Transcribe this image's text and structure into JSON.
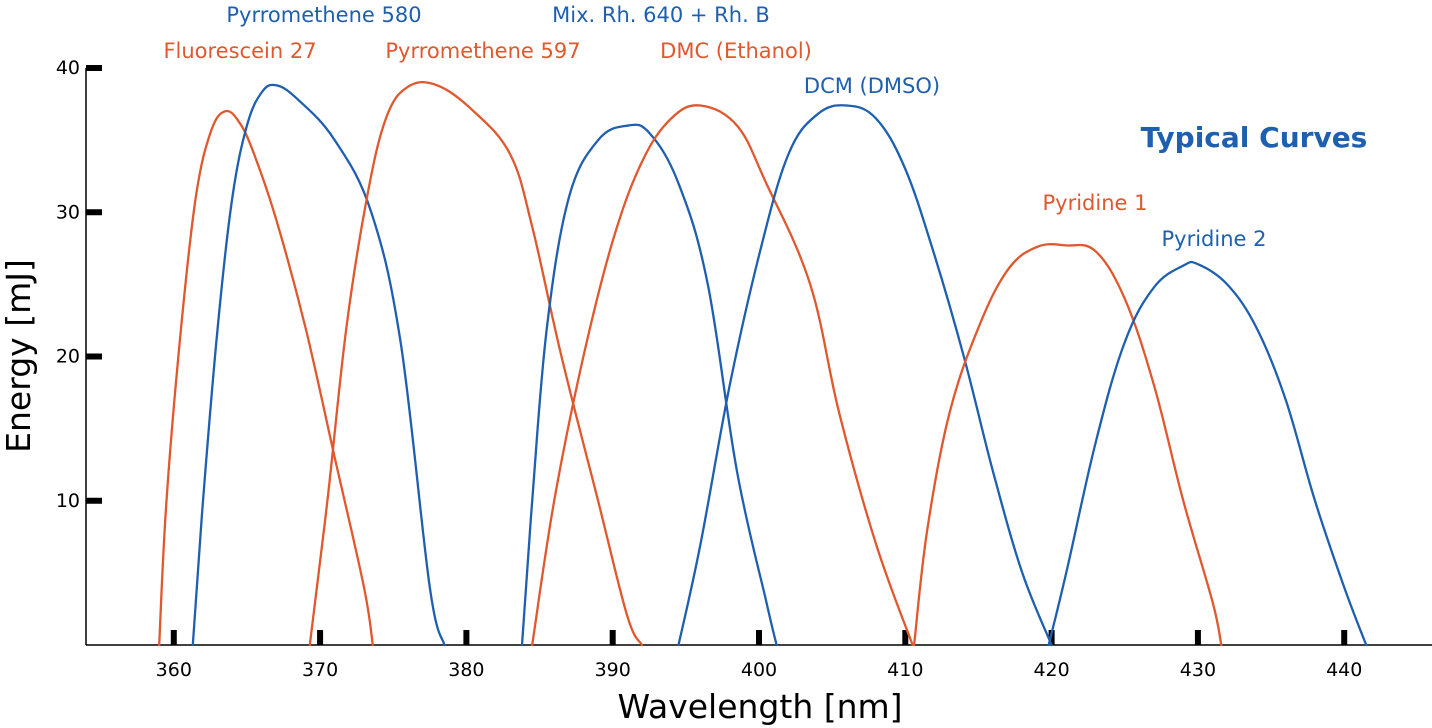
{
  "chart_data": {
    "type": "line",
    "title": "",
    "xlabel": "Wavelength [nm]",
    "ylabel": "Energy [mJ]",
    "xlim": [
      354,
      446
    ],
    "ylim": [
      0,
      40
    ],
    "x_ticks": [
      360,
      370,
      380,
      390,
      400,
      410,
      420,
      430,
      440
    ],
    "y_ticks": [
      10,
      20,
      30,
      40
    ],
    "grid": false,
    "legend": "inline labels above curves",
    "annotation": "Typical Curves",
    "colors": {
      "orange": "#e0582e",
      "blue": "#1e5fb0"
    },
    "series": [
      {
        "name": "Fluorescein 27",
        "color": "#e0582e",
        "label": "Fluorescein 27",
        "points": [
          [
            359,
            0
          ],
          [
            359.5,
            10
          ],
          [
            360.5,
            22
          ],
          [
            361.5,
            31
          ],
          [
            362.5,
            35.5
          ],
          [
            363.5,
            37
          ],
          [
            364.5,
            36.2
          ],
          [
            365.5,
            34
          ],
          [
            367,
            29.5
          ],
          [
            369,
            22
          ],
          [
            371,
            13
          ],
          [
            373,
            4
          ],
          [
            373.6,
            0
          ]
        ]
      },
      {
        "name": "Pyrromethene 580",
        "color": "#1e5fb0",
        "label": "Pyrromethene 580",
        "points": [
          [
            361.3,
            0
          ],
          [
            362,
            10
          ],
          [
            363,
            22
          ],
          [
            364,
            31
          ],
          [
            365,
            36
          ],
          [
            366,
            38.3
          ],
          [
            367,
            38.8
          ],
          [
            368.5,
            37.8
          ],
          [
            371,
            35
          ],
          [
            373.5,
            30
          ],
          [
            375.5,
            21
          ],
          [
            377.5,
            4
          ],
          [
            378.5,
            0
          ]
        ]
      },
      {
        "name": "Pyrromethene 597",
        "color": "#e0582e",
        "label": "Pyrromethene 597",
        "points": [
          [
            369.3,
            0
          ],
          [
            370.5,
            10
          ],
          [
            371.8,
            22
          ],
          [
            373.2,
            31
          ],
          [
            374.5,
            36.5
          ],
          [
            376,
            38.7
          ],
          [
            378,
            38.8
          ],
          [
            380.5,
            37
          ],
          [
            383,
            34
          ],
          [
            384.5,
            29
          ],
          [
            386.5,
            20
          ],
          [
            389,
            10
          ],
          [
            391,
            2
          ],
          [
            392,
            0
          ]
        ]
      },
      {
        "name": "Mix. Rh. 640 + Rh. B",
        "color": "#1e5fb0",
        "label": "Mix. Rh. 640 + Rh. B",
        "points": [
          [
            383.8,
            0
          ],
          [
            384.5,
            10
          ],
          [
            385.5,
            22
          ],
          [
            387,
            31
          ],
          [
            389,
            35
          ],
          [
            391,
            36
          ],
          [
            392.5,
            35.5
          ],
          [
            394.5,
            32
          ],
          [
            396.5,
            25
          ],
          [
            398.5,
            12
          ],
          [
            400.5,
            3
          ],
          [
            401.2,
            0
          ]
        ]
      },
      {
        "name": "DMC (Ethanol)",
        "color": "#e0582e",
        "label": "DMC (Ethanol)",
        "points": [
          [
            384.5,
            0
          ],
          [
            386,
            10
          ],
          [
            388,
            20
          ],
          [
            390,
            28
          ],
          [
            392,
            33.5
          ],
          [
            394,
            36.5
          ],
          [
            396,
            37.4
          ],
          [
            398.5,
            36
          ],
          [
            400.5,
            32
          ],
          [
            403.5,
            25
          ],
          [
            405.5,
            16
          ],
          [
            408,
            7
          ],
          [
            410.5,
            0
          ]
        ]
      },
      {
        "name": "DCM (DMSO)",
        "color": "#1e5fb0",
        "label": "DCM (DMSO)",
        "points": [
          [
            394.5,
            0
          ],
          [
            396,
            7
          ],
          [
            398,
            18
          ],
          [
            400,
            27
          ],
          [
            402,
            34
          ],
          [
            404,
            36.8
          ],
          [
            406,
            37.4
          ],
          [
            408,
            36.5
          ],
          [
            410,
            33
          ],
          [
            412,
            27
          ],
          [
            414,
            20
          ],
          [
            416,
            12
          ],
          [
            418,
            5
          ],
          [
            420,
            0
          ]
        ]
      },
      {
        "name": "Pyridine 1",
        "color": "#e0582e",
        "label": "Pyridine 1",
        "points": [
          [
            410.6,
            0
          ],
          [
            411.5,
            8
          ],
          [
            413,
            16
          ],
          [
            415,
            22
          ],
          [
            417,
            26
          ],
          [
            419,
            27.6
          ],
          [
            421,
            27.7
          ],
          [
            423,
            27.3
          ],
          [
            425,
            24
          ],
          [
            427,
            18
          ],
          [
            429,
            10
          ],
          [
            431,
            3
          ],
          [
            431.6,
            0
          ]
        ]
      },
      {
        "name": "Pyridine 2",
        "color": "#1e5fb0",
        "label": "Pyridine 2",
        "points": [
          [
            419.8,
            0
          ],
          [
            421,
            5
          ],
          [
            423,
            14
          ],
          [
            425,
            21
          ],
          [
            427,
            24.8
          ],
          [
            429,
            26.3
          ],
          [
            430,
            26.4
          ],
          [
            432,
            25
          ],
          [
            434,
            22
          ],
          [
            436,
            17
          ],
          [
            438,
            10
          ],
          [
            440,
            4
          ],
          [
            441.5,
            0
          ]
        ]
      }
    ]
  }
}
